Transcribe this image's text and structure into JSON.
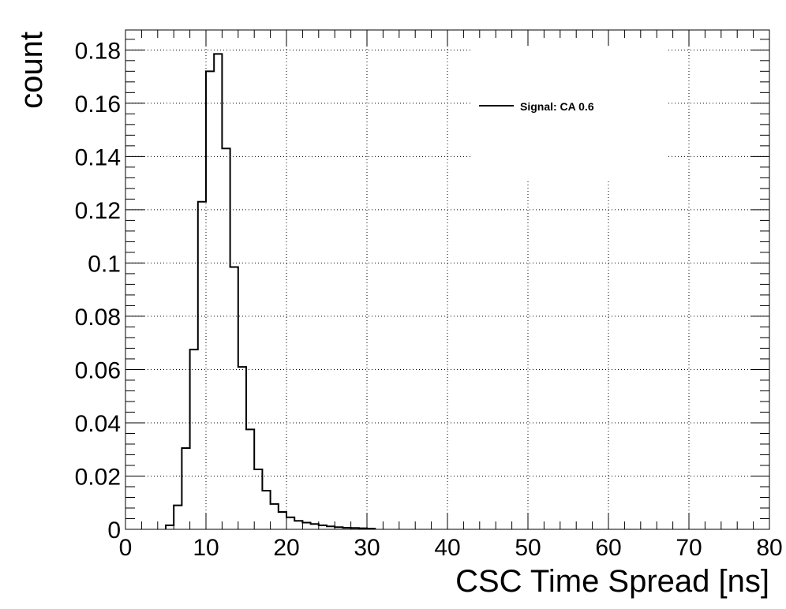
{
  "chart_data": {
    "type": "histogram",
    "title": "",
    "xlabel": "CSC Time Spread [ns]",
    "ylabel": "count",
    "xlim": [
      0,
      80
    ],
    "ylim": [
      0,
      0.1875
    ],
    "grid": true,
    "legend_position": "top-right",
    "bin_width": 1,
    "x_ticks": [
      0,
      10,
      20,
      30,
      40,
      50,
      60,
      70,
      80
    ],
    "x_tick_labels": [
      "0",
      "10",
      "20",
      "30",
      "40",
      "50",
      "60",
      "70",
      "80"
    ],
    "y_ticks": [
      0,
      0.02,
      0.04,
      0.06,
      0.08,
      0.1,
      0.12,
      0.14,
      0.16,
      0.18
    ],
    "y_tick_labels": [
      "0",
      "0.02",
      "0.04",
      "0.06",
      "0.08",
      "0.1",
      "0.12",
      "0.14",
      "0.16",
      "0.18"
    ],
    "series": [
      {
        "name": "Signal: CA 0.6",
        "color": "#000000",
        "bin_edges": [
          5,
          6,
          7,
          8,
          9,
          10,
          11,
          12,
          13,
          14,
          15,
          16,
          17,
          18,
          19,
          20,
          21,
          22,
          23,
          24,
          25,
          26,
          27,
          28,
          29,
          30,
          31
        ],
        "values": [
          0.0015,
          0.009,
          0.0305,
          0.0675,
          0.123,
          0.172,
          0.1785,
          0.143,
          0.0985,
          0.061,
          0.0375,
          0.0225,
          0.0145,
          0.0095,
          0.0065,
          0.0045,
          0.0032,
          0.0025,
          0.002,
          0.0015,
          0.0011,
          0.0008,
          0.0006,
          0.0005,
          0.0004,
          0.0003
        ]
      }
    ]
  }
}
